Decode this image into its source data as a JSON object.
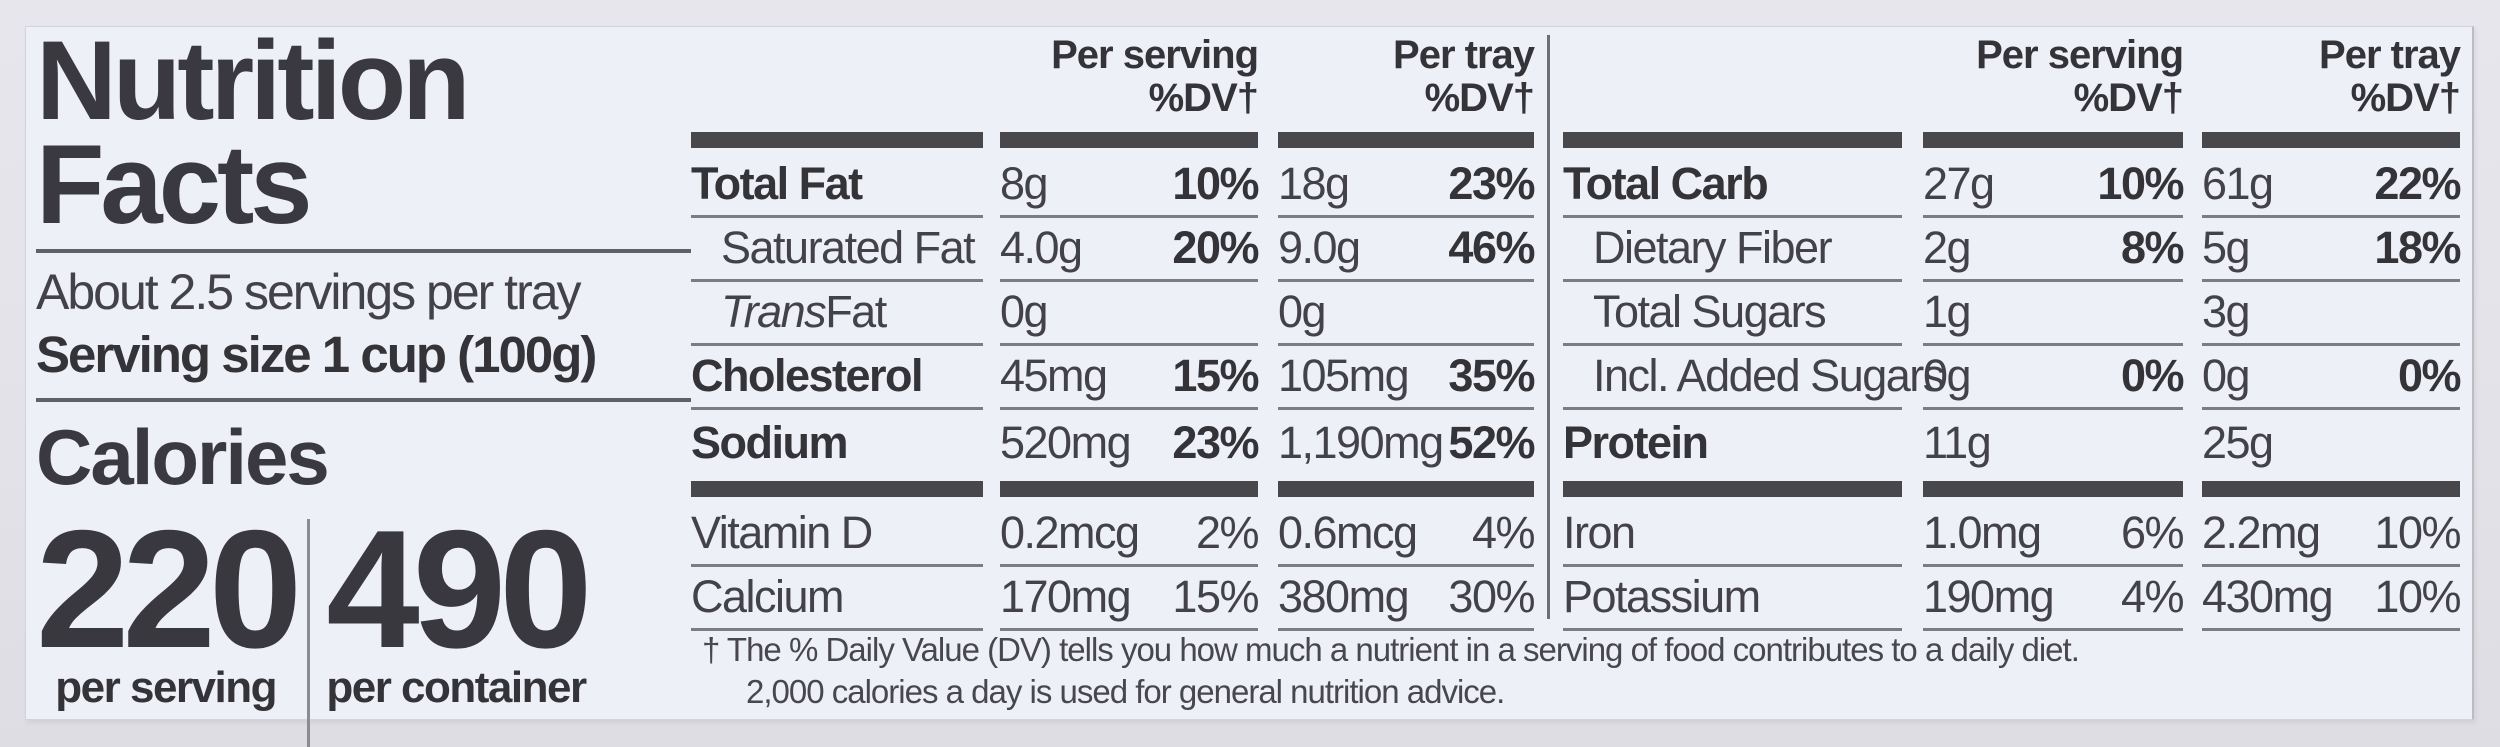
{
  "nutrition_label": {
    "title_line1": "Nutrition",
    "title_line2": "Facts",
    "servings_statement": "About 2.5 servings per tray",
    "serving_size_statement": "Serving size 1 cup (100g)",
    "calories": {
      "heading": "Calories",
      "per_serving": {
        "value": "220",
        "label": "per serving"
      },
      "per_container": {
        "value": "490",
        "label": "per container"
      }
    },
    "column_headers": {
      "serving": "Per serving",
      "tray": "Per tray",
      "dv": "%DV†"
    },
    "left_table": {
      "rows": [
        {
          "type": "bar"
        },
        {
          "name": "Total Fat",
          "bold": true,
          "dv_bold": true,
          "serving": {
            "amount": "8g",
            "dv": "10%"
          },
          "tray": {
            "amount": "18g",
            "dv": "23%"
          }
        },
        {
          "name": "Saturated Fat",
          "indent": 1,
          "dv_bold": true,
          "serving": {
            "amount": "4.0g",
            "dv": "20%"
          },
          "tray": {
            "amount": "9.0g",
            "dv": "46%"
          }
        },
        {
          "name_italic": "Trans",
          "name": " Fat",
          "indent": 1,
          "serving": {
            "amount": "0g",
            "dv": ""
          },
          "tray": {
            "amount": "0g",
            "dv": ""
          }
        },
        {
          "name": "Cholesterol",
          "bold": true,
          "dv_bold": true,
          "serving": {
            "amount": "45mg",
            "dv": "15%"
          },
          "tray": {
            "amount": "105mg",
            "dv": "35%"
          }
        },
        {
          "name": "Sodium",
          "bold": true,
          "dv_bold": true,
          "serving": {
            "amount": "520mg",
            "dv": "23%"
          },
          "tray": {
            "amount": "1,190mg",
            "dv": "52%"
          }
        },
        {
          "type": "bar"
        },
        {
          "name": "Vitamin D",
          "serving": {
            "amount": "0.2mcg",
            "dv": "2%"
          },
          "tray": {
            "amount": "0.6mcg",
            "dv": "4%"
          }
        },
        {
          "name": "Calcium",
          "serving": {
            "amount": "170mg",
            "dv": "15%"
          },
          "tray": {
            "amount": "380mg",
            "dv": "30%"
          }
        }
      ]
    },
    "right_table": {
      "rows": [
        {
          "type": "bar"
        },
        {
          "name": "Total Carb",
          "bold": true,
          "dv_bold": true,
          "serving": {
            "amount": "27g",
            "dv": "10%"
          },
          "tray": {
            "amount": "61g",
            "dv": "22%"
          }
        },
        {
          "name": "Dietary Fiber",
          "indent": 1,
          "dv_bold": true,
          "serving": {
            "amount": "2g",
            "dv": "8%"
          },
          "tray": {
            "amount": "5g",
            "dv": "18%"
          }
        },
        {
          "name": "Total Sugars",
          "indent": 1,
          "serving": {
            "amount": "1g",
            "dv": ""
          },
          "tray": {
            "amount": "3g",
            "dv": ""
          }
        },
        {
          "name": "Incl. Added Sugars",
          "indent": 1,
          "dv_bold": true,
          "serving": {
            "amount": "0g",
            "dv": "0%"
          },
          "tray": {
            "amount": "0g",
            "dv": "0%"
          }
        },
        {
          "name": "Protein",
          "bold": true,
          "serving": {
            "amount": "11g",
            "dv": ""
          },
          "tray": {
            "amount": "25g",
            "dv": ""
          }
        },
        {
          "type": "bar"
        },
        {
          "name": "Iron",
          "serving": {
            "amount": "1.0mg",
            "dv": "6%"
          },
          "tray": {
            "amount": "2.2mg",
            "dv": "10%"
          }
        },
        {
          "name": "Potassium",
          "serving": {
            "amount": "190mg",
            "dv": "4%"
          },
          "tray": {
            "amount": "430mg",
            "dv": "10%"
          }
        }
      ]
    },
    "footnote": {
      "line1": "† The % Daily Value (DV) tells you how much a nutrient in a serving of food contributes to a daily diet.",
      "line2": "2,000 calories a day is used for general nutrition advice."
    },
    "colors": {
      "ink": "#434248",
      "heavy_ink": "#343338",
      "rule_line": "#7c7c82",
      "section_bar": "#48474c",
      "label_background": "#eef0f7",
      "page_background": "#e2e2e8"
    }
  }
}
